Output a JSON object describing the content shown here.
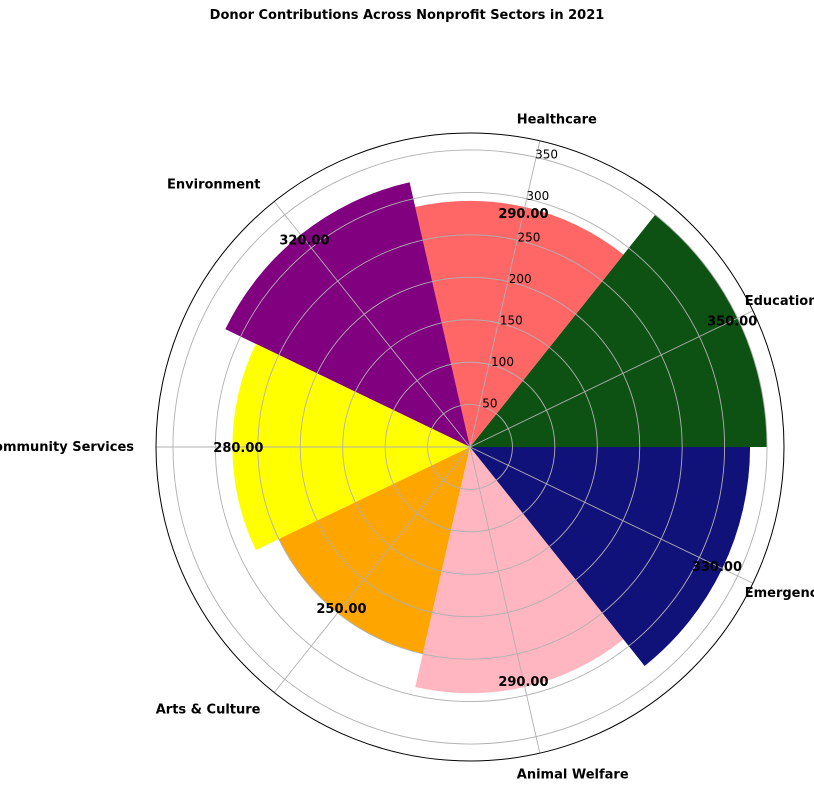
{
  "chart_data": {
    "type": "polar-bar",
    "title": "Donor Contributions Across Nonprofit Sectors in 2021",
    "categories": [
      "Education",
      "Healthcare",
      "Environment",
      "Community Services",
      "Arts & Culture",
      "Animal Welfare",
      "Emergency Relief"
    ],
    "values": [
      350,
      290,
      320,
      280,
      250,
      290,
      330
    ],
    "value_labels": [
      "350.00",
      "290.00",
      "320.00",
      "280.00",
      "250.00",
      "290.00",
      "330.00"
    ],
    "colors": [
      "#0e5213",
      "#ff6666",
      "#800080",
      "#ffff00",
      "#ffa500",
      "#ffb6c1",
      "#11117a"
    ],
    "radial_ticks": [
      "50",
      "100",
      "150",
      "200",
      "250",
      "300",
      "350"
    ],
    "rlim": [
      0,
      370
    ],
    "grid": true
  }
}
